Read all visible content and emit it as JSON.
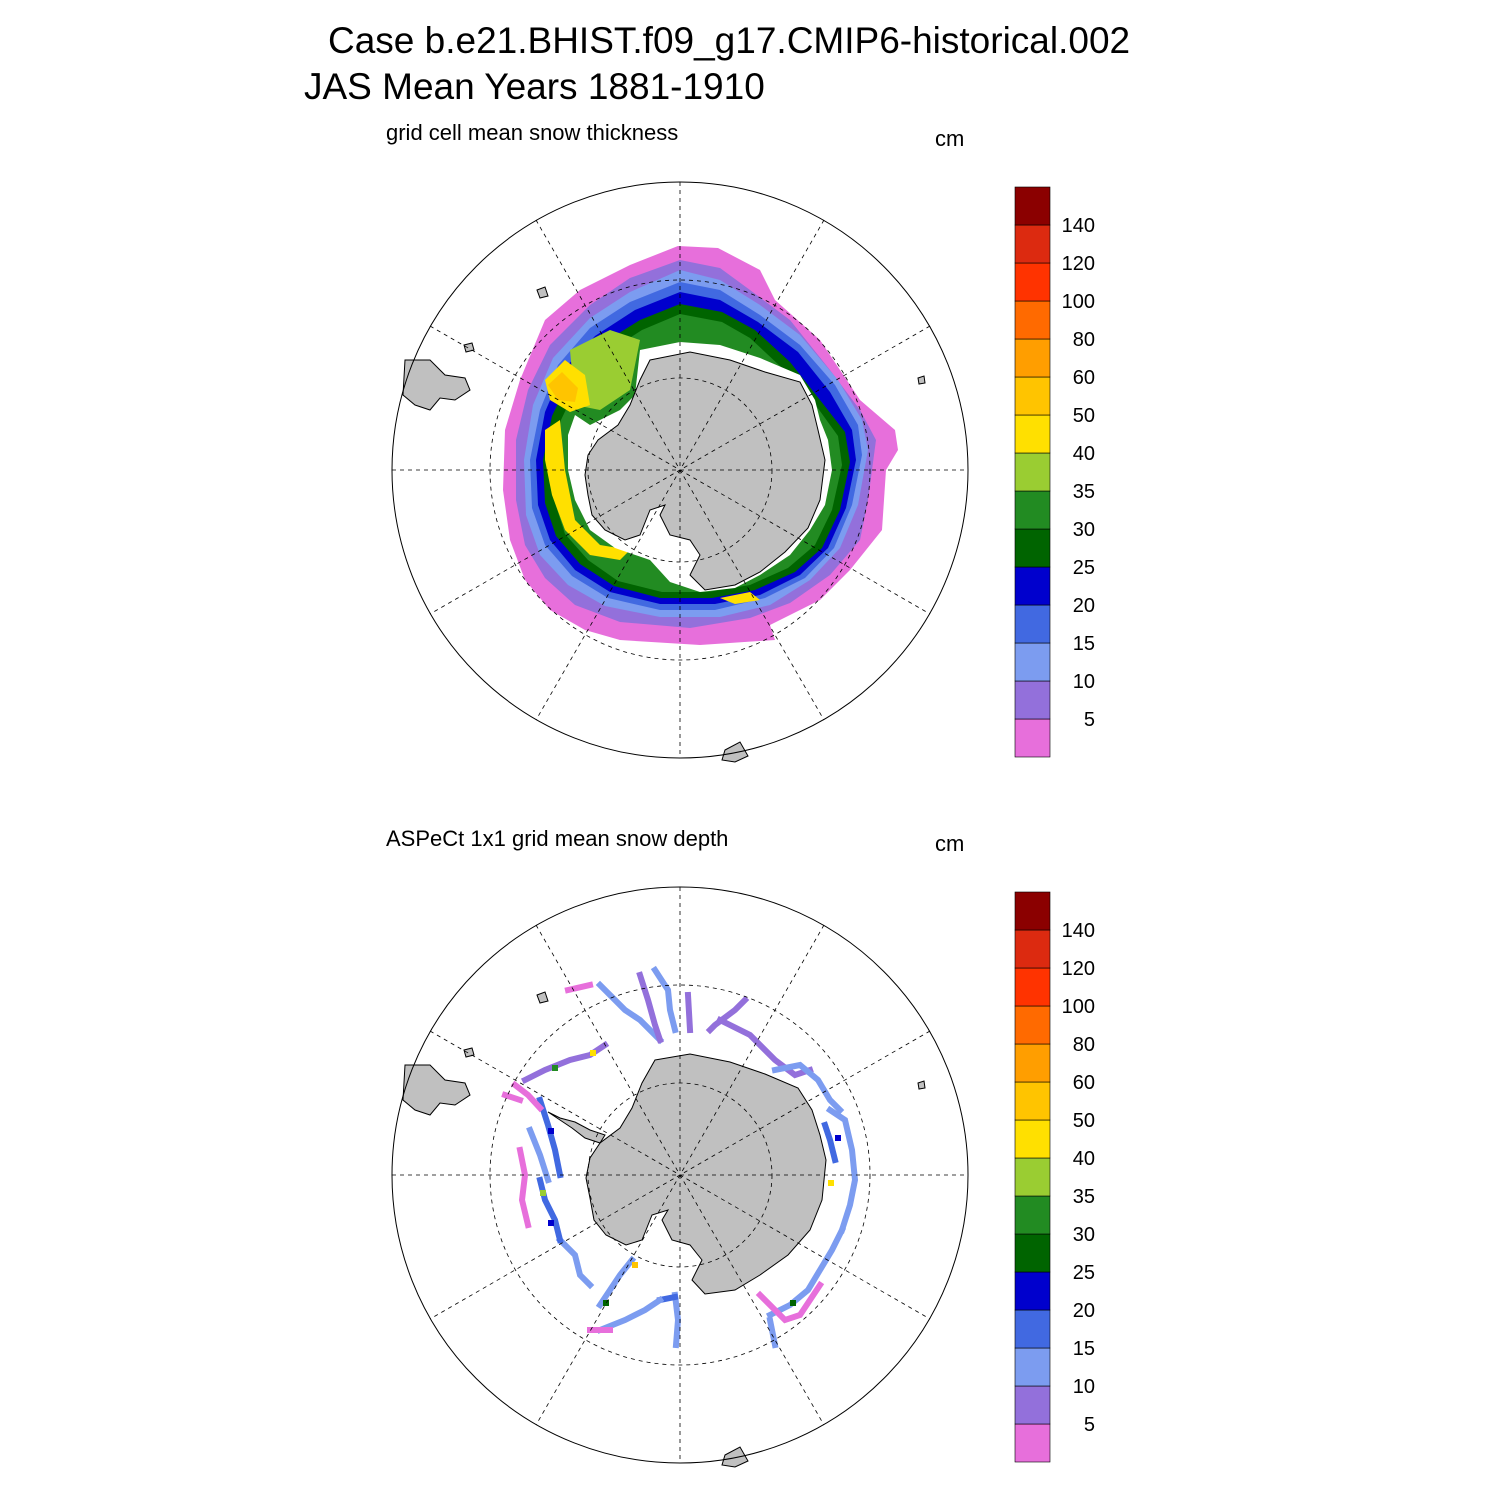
{
  "header": {
    "case_line": "Case b.e21.BHIST.f09_g17.CMIP6-historical.002",
    "period_line": "JAS Mean   Years 1881-1910"
  },
  "colorbar": {
    "levels": [
      "5",
      "10",
      "15",
      "20",
      "25",
      "30",
      "35",
      "40",
      "50",
      "60",
      "80",
      "100",
      "120",
      "140"
    ],
    "colors": [
      "#e76fdb",
      "#9370db",
      "#7c9cf0",
      "#4169e1",
      "#0000cd",
      "#006400",
      "#228b22",
      "#9acd32",
      "#ffe000",
      "#ffc400",
      "#ff9e00",
      "#ff6a00",
      "#ff3300",
      "#dc2a10",
      "#8b0000"
    ]
  },
  "panels": [
    {
      "id": "model",
      "subtitle": "grid cell mean snow thickness",
      "units": "cm"
    },
    {
      "id": "obs",
      "subtitle": "ASPeCt 1x1 grid mean snow depth",
      "units": "cm"
    }
  ],
  "map": {
    "projection": "south-polar-stereographic",
    "land_color": "#c0c0c0",
    "grid": "dashed"
  }
}
